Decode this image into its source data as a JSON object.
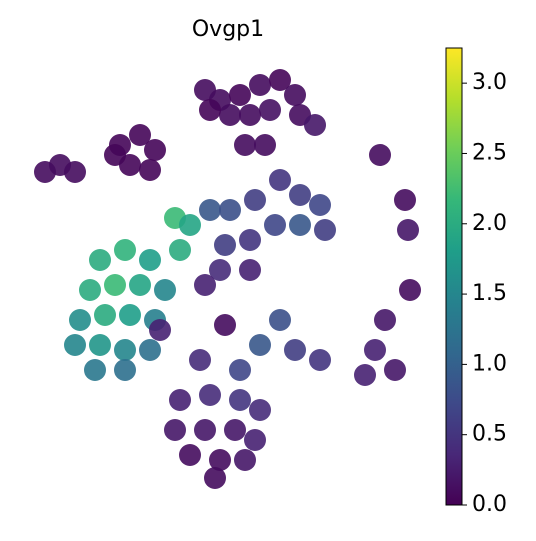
{
  "chart_data": {
    "type": "scatter",
    "title": "Ovgp1",
    "x": [
      185,
      200,
      220,
      240,
      260,
      275,
      280,
      250,
      230,
      210,
      190,
      295,
      225,
      245,
      100,
      120,
      135,
      110,
      130,
      95,
      25,
      40,
      55,
      80,
      105,
      130,
      70,
      95,
      120,
      145,
      60,
      85,
      110,
      135,
      55,
      80,
      105,
      130,
      75,
      105,
      155,
      170,
      160,
      190,
      210,
      235,
      260,
      280,
      300,
      305,
      280,
      255,
      230,
      205,
      200,
      230,
      185,
      205,
      260,
      240,
      275,
      300,
      180,
      220,
      140,
      160,
      190,
      220,
      240,
      155,
      185,
      215,
      235,
      170,
      200,
      225,
      195,
      360,
      385,
      388,
      365,
      355,
      345,
      375,
      390
    ],
    "y": [
      415,
      405,
      410,
      420,
      425,
      410,
      390,
      395,
      390,
      390,
      395,
      380,
      360,
      360,
      360,
      370,
      355,
      340,
      335,
      350,
      333,
      340,
      333,
      245,
      255,
      245,
      215,
      220,
      220,
      215,
      185,
      190,
      190,
      185,
      160,
      160,
      155,
      155,
      135,
      135,
      287,
      280,
      255,
      295,
      295,
      305,
      325,
      310,
      300,
      275,
      280,
      280,
      265,
      260,
      235,
      235,
      220,
      180,
      185,
      160,
      155,
      145,
      145,
      135,
      175,
      105,
      110,
      105,
      95,
      75,
      75,
      75,
      65,
      50,
      45,
      45,
      27,
      350,
      305,
      275,
      185,
      155,
      130,
      135,
      215
    ],
    "values": [
      0.1,
      0.1,
      0.05,
      0.1,
      0.05,
      0.1,
      0.1,
      0.15,
      0.1,
      0.1,
      0.05,
      0.2,
      0.1,
      0.1,
      0.05,
      0.05,
      0.05,
      0.05,
      0.05,
      0.05,
      0.1,
      0.1,
      0.1,
      2.0,
      2.1,
      1.8,
      2.0,
      2.2,
      1.9,
      1.5,
      1.6,
      2.0,
      1.8,
      1.4,
      1.5,
      1.7,
      1.5,
      1.2,
      1.3,
      1.2,
      2.2,
      1.9,
      2.0,
      0.9,
      0.8,
      0.6,
      0.5,
      0.6,
      0.7,
      0.6,
      0.9,
      0.7,
      0.5,
      0.6,
      0.4,
      0.3,
      0.3,
      0.1,
      0.8,
      0.9,
      0.6,
      0.5,
      0.4,
      0.7,
      0.3,
      0.3,
      0.4,
      0.5,
      0.4,
      0.2,
      0.2,
      0.2,
      0.3,
      0.1,
      0.1,
      0.2,
      0.1,
      0.1,
      0.1,
      0.2,
      0.2,
      0.3,
      0.3,
      0.2,
      0.1
    ],
    "xlim": [
      0,
      410
    ],
    "ylim": [
      0,
      460
    ],
    "colormap": "viridis",
    "clim": [
      0,
      3.25
    ],
    "cticks": [
      {
        "value": 0,
        "label": "0.0"
      },
      {
        "value": 0.5,
        "label": "0.5"
      },
      {
        "value": 1,
        "label": "1.0"
      },
      {
        "value": 1.5,
        "label": "1.5"
      },
      {
        "value": 2,
        "label": "2.0"
      },
      {
        "value": 2.5,
        "label": "2.5"
      },
      {
        "value": 3,
        "label": "3.0"
      }
    ]
  }
}
